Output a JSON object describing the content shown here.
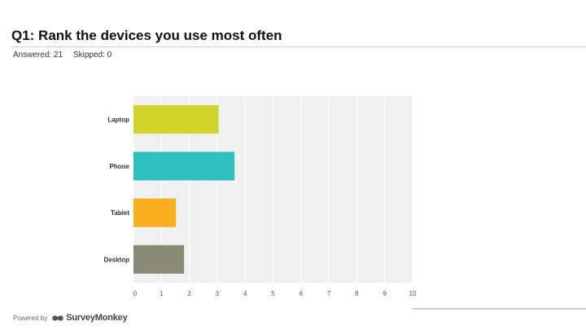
{
  "header": {
    "title": "Q1: Rank the devices you use most often",
    "answered_label": "Answered: 21",
    "skipped_label": "Skipped: 0"
  },
  "footer": {
    "powered_by": "Powered by",
    "brand": "SurveyMonkey",
    "logo_icon": "surveymonkey-logo-icon"
  },
  "chart_data": {
    "type": "bar",
    "orientation": "horizontal",
    "categories": [
      "Laptop",
      "Phone",
      "Tablet",
      "Desktop"
    ],
    "values": [
      3.05,
      3.62,
      1.52,
      1.81
    ],
    "colors": [
      "#d1d52b",
      "#30bfbf",
      "#f8ae1d",
      "#898a76"
    ],
    "xlim": [
      0,
      10
    ],
    "xticks": [
      0,
      1,
      2,
      3,
      4,
      5,
      6,
      7,
      8,
      9,
      10
    ],
    "grid": true,
    "plot_background": "#f0f0f0"
  }
}
